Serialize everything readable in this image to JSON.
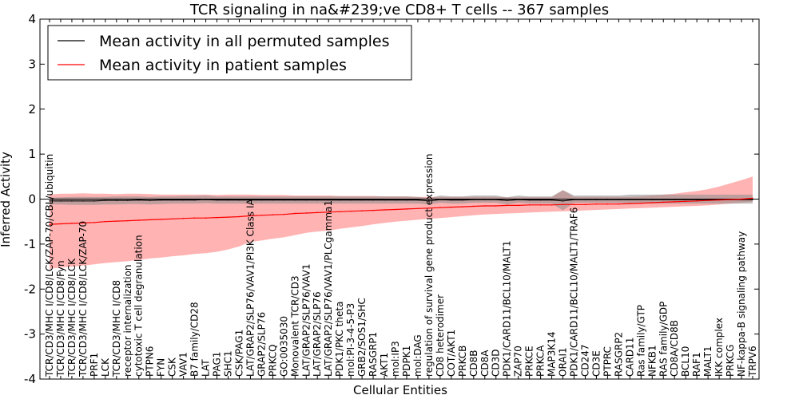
{
  "chart_data": {
    "type": "line",
    "title": "TCR signaling in na&#239;ve CD8+ T cells -- 367 samples",
    "xlabel": "Cellular Entities",
    "ylabel": "Inferred Activity",
    "ylim": [
      -4,
      4
    ],
    "yticks": [
      -4,
      -3,
      -2,
      -1,
      0,
      1,
      2,
      3,
      4
    ],
    "legend_position": "top-left",
    "colors": {
      "permuted": "#000000",
      "permuted_band": "#8c8c8c",
      "patient": "#ff0000",
      "patient_band": "#ff9999"
    },
    "legend": [
      {
        "name": "Mean activity in all permuted samples",
        "color": "#000000"
      },
      {
        "name": "Mean activity in patient samples",
        "color": "#ff0000"
      }
    ],
    "categories": [
      "TCR/CD3/MHC I/CD8/LCK/ZAP-70/CBL/ubiquitin",
      "TCR/CD3/MHC I/CD8/Fyn",
      "TCR/CD3/MHC I/CD8/LCK",
      "TCR/CD3/MHC I/CD8/LCK/ZAP-70",
      "PRF1",
      "LCK",
      "TCR/CD3/MHC I/CD8",
      "receptor internalization",
      "cytotoxic T cell degranulation",
      "PTPN6",
      "FYN",
      "CSK",
      "VAV1",
      "B7 family/CD28",
      "LAT",
      "PAG1",
      "SHC1",
      "CSK/PAG1",
      "LAT/GRAP2/SLP76/VAV1/PI3K Class IA",
      "GRAP2/SLP76",
      "PRKCQ",
      "GO:0035030",
      "Monovalent TCR/CD3",
      "LAT/GRAP2/SLP76/VAV1",
      "LAT/GRAP2/SLP76",
      "LAT/GRAP2/SLP76/VAV1/PLCgamma1",
      "PDK1/PKC theta",
      "mol:PI-3-4-5-P3",
      "GRB2/SOS1/SHC",
      "RASGRP1",
      "AKT1",
      "mol:IP3",
      "PDPK1",
      "mol:DAG",
      "regulation of survival gene product expression",
      "CD8 heterodimer",
      "COT/AKT1",
      "PRKCB",
      "CD8B",
      "CD8A",
      "CD3D",
      "PDK1/CARD11/BCL10/MALT1",
      "ZAP70",
      "PRKCE",
      "PRKCA",
      "MAP3K14",
      "ORAI1",
      "PDK1/CARD11/BCL10/MALT1/TRAF6",
      "CD247",
      "CD3E",
      "PTPRC",
      "RASGRP2",
      "CARD11",
      "Ras family/GTP",
      "NFKB1",
      "RAS family/GDP",
      "CD8A/CD8B",
      "BCL10",
      "RAF1",
      "MALT1",
      "IKK complex",
      "PRKCG",
      "NF-kappa-B signaling pathway",
      "TRPV6"
    ],
    "series": [
      {
        "name": "Mean activity in all permuted samples",
        "values": [
          -0.04,
          -0.04,
          -0.04,
          -0.04,
          -0.04,
          -0.03,
          -0.03,
          -0.03,
          -0.02,
          -0.03,
          -0.02,
          -0.02,
          -0.02,
          -0.02,
          -0.01,
          -0.02,
          -0.02,
          -0.02,
          -0.02,
          -0.02,
          -0.02,
          -0.02,
          -0.02,
          -0.02,
          -0.02,
          -0.02,
          -0.02,
          -0.02,
          -0.02,
          -0.02,
          -0.02,
          -0.02,
          -0.02,
          -0.02,
          -0.04,
          -0.01,
          -0.02,
          -0.02,
          -0.01,
          -0.01,
          -0.01,
          -0.03,
          -0.01,
          -0.02,
          -0.02,
          -0.02,
          -0.04,
          -0.01,
          -0.01,
          -0.01,
          -0.01,
          -0.01,
          -0.01,
          -0.01,
          -0.01,
          -0.01,
          -0.01,
          -0.01,
          -0.01,
          -0.01,
          -0.01,
          -0.01,
          -0.01,
          -0.01
        ],
        "lower": [
          -0.12,
          -0.12,
          -0.13,
          -0.13,
          -0.13,
          -0.12,
          -0.12,
          -0.11,
          -0.11,
          -0.12,
          -0.11,
          -0.1,
          -0.1,
          -0.1,
          -0.09,
          -0.1,
          -0.1,
          -0.1,
          -0.1,
          -0.1,
          -0.1,
          -0.1,
          -0.1,
          -0.1,
          -0.1,
          -0.1,
          -0.1,
          -0.1,
          -0.1,
          -0.1,
          -0.1,
          -0.1,
          -0.1,
          -0.1,
          -0.12,
          -0.08,
          -0.1,
          -0.1,
          -0.08,
          -0.08,
          -0.08,
          -0.12,
          -0.08,
          -0.1,
          -0.1,
          -0.1,
          -0.25,
          -0.08,
          -0.08,
          -0.08,
          -0.08,
          -0.08,
          -0.1,
          -0.1,
          -0.1,
          -0.1,
          -0.1,
          -0.1,
          -0.1,
          -0.1,
          -0.1,
          -0.1,
          -0.1,
          -0.1
        ],
        "upper": [
          0.03,
          0.04,
          0.05,
          0.05,
          0.05,
          0.05,
          0.06,
          0.06,
          0.06,
          0.05,
          0.06,
          0.06,
          0.07,
          0.07,
          0.08,
          0.06,
          0.06,
          0.06,
          0.06,
          0.06,
          0.06,
          0.06,
          0.06,
          0.06,
          0.06,
          0.06,
          0.06,
          0.06,
          0.06,
          0.06,
          0.06,
          0.06,
          0.06,
          0.05,
          0.02,
          0.08,
          0.06,
          0.06,
          0.08,
          0.08,
          0.08,
          0.04,
          0.08,
          0.06,
          0.06,
          0.06,
          0.2,
          0.08,
          0.08,
          0.08,
          0.08,
          0.08,
          0.1,
          0.1,
          0.1,
          0.1,
          0.1,
          0.1,
          0.1,
          0.1,
          0.1,
          0.1,
          0.1,
          0.1
        ]
      },
      {
        "name": "Mean activity in patient samples",
        "values": [
          -0.56,
          -0.55,
          -0.54,
          -0.53,
          -0.52,
          -0.5,
          -0.49,
          -0.48,
          -0.47,
          -0.46,
          -0.45,
          -0.44,
          -0.43,
          -0.42,
          -0.42,
          -0.41,
          -0.4,
          -0.39,
          -0.37,
          -0.36,
          -0.35,
          -0.34,
          -0.32,
          -0.31,
          -0.3,
          -0.29,
          -0.28,
          -0.27,
          -0.26,
          -0.25,
          -0.24,
          -0.23,
          -0.22,
          -0.21,
          -0.2,
          -0.19,
          -0.18,
          -0.17,
          -0.16,
          -0.15,
          -0.15,
          -0.14,
          -0.14,
          -0.13,
          -0.13,
          -0.13,
          -0.12,
          -0.12,
          -0.12,
          -0.11,
          -0.11,
          -0.11,
          -0.1,
          -0.09,
          -0.08,
          -0.07,
          -0.06,
          -0.05,
          -0.04,
          -0.03,
          -0.02,
          -0.01,
          0.0,
          0.02
        ],
        "lower": [
          -1.55,
          -1.52,
          -1.5,
          -1.48,
          -1.45,
          -1.42,
          -1.4,
          -1.38,
          -1.35,
          -1.32,
          -1.3,
          -1.27,
          -1.25,
          -1.22,
          -1.2,
          -1.17,
          -1.12,
          -1.05,
          -0.95,
          -0.92,
          -0.88,
          -0.85,
          -0.8,
          -0.75,
          -0.72,
          -0.7,
          -0.66,
          -0.63,
          -0.6,
          -0.56,
          -0.53,
          -0.5,
          -0.48,
          -0.46,
          -0.44,
          -0.42,
          -0.4,
          -0.38,
          -0.36,
          -0.34,
          -0.33,
          -0.32,
          -0.31,
          -0.3,
          -0.29,
          -0.28,
          -0.27,
          -0.26,
          -0.25,
          -0.24,
          -0.23,
          -0.22,
          -0.21,
          -0.2,
          -0.19,
          -0.18,
          -0.17,
          -0.16,
          -0.15,
          -0.14,
          -0.12,
          -0.1,
          -0.08,
          -0.06
        ],
        "upper": [
          0.1,
          0.12,
          0.12,
          0.13,
          0.12,
          0.12,
          0.11,
          0.12,
          0.12,
          0.11,
          0.1,
          0.1,
          0.1,
          0.1,
          0.1,
          0.09,
          0.1,
          0.1,
          0.1,
          0.09,
          0.09,
          0.09,
          0.08,
          0.08,
          0.08,
          0.08,
          0.07,
          0.07,
          0.07,
          0.07,
          0.06,
          0.06,
          0.06,
          0.05,
          0.05,
          0.05,
          0.05,
          0.05,
          0.05,
          0.05,
          0.05,
          0.04,
          0.04,
          0.04,
          0.04,
          0.04,
          0.2,
          0.05,
          0.05,
          0.05,
          0.05,
          0.05,
          0.05,
          0.06,
          0.08,
          0.1,
          0.12,
          0.15,
          0.18,
          0.22,
          0.28,
          0.35,
          0.42,
          0.5
        ]
      }
    ]
  }
}
